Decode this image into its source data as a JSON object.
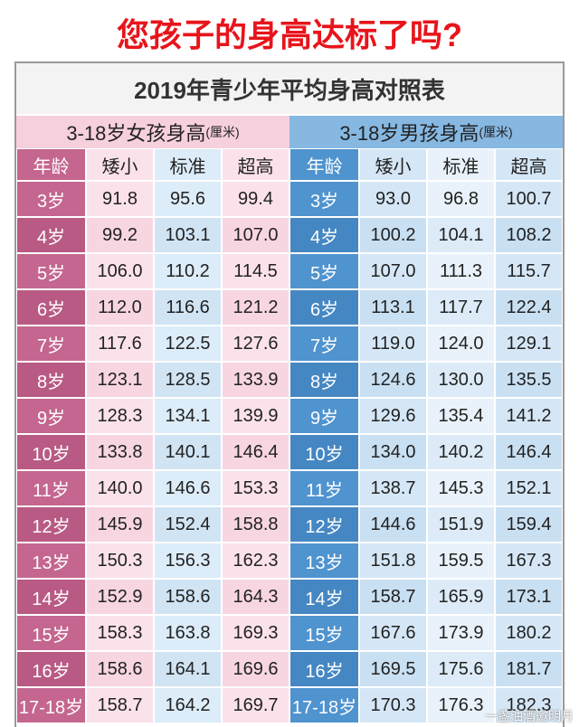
{
  "title": "您孩子的身高达标了吗?",
  "table": {
    "title": "2019年青少年平均身高对照表",
    "sections": [
      {
        "heading": "3-18岁女孩身高",
        "unit": "(厘米)",
        "columns": [
          "年龄",
          "矮小",
          "标准",
          "超高"
        ],
        "rows": [
          [
            "3岁",
            "91.8",
            "95.6",
            "99.4"
          ],
          [
            "4岁",
            "99.2",
            "103.1",
            "107.0"
          ],
          [
            "5岁",
            "106.0",
            "110.2",
            "114.5"
          ],
          [
            "6岁",
            "112.0",
            "116.6",
            "121.2"
          ],
          [
            "7岁",
            "117.6",
            "122.5",
            "127.6"
          ],
          [
            "8岁",
            "123.1",
            "128.5",
            "133.9"
          ],
          [
            "9岁",
            "128.3",
            "134.1",
            "139.9"
          ],
          [
            "10岁",
            "133.8",
            "140.1",
            "146.4"
          ],
          [
            "11岁",
            "140.0",
            "146.6",
            "153.3"
          ],
          [
            "12岁",
            "145.9",
            "152.4",
            "158.8"
          ],
          [
            "13岁",
            "150.3",
            "156.3",
            "162.3"
          ],
          [
            "14岁",
            "152.9",
            "158.6",
            "164.3"
          ],
          [
            "15岁",
            "158.3",
            "163.8",
            "169.3"
          ],
          [
            "16岁",
            "158.6",
            "164.1",
            "169.6"
          ],
          [
            "17-18岁",
            "158.7",
            "164.2",
            "169.7"
          ]
        ]
      },
      {
        "heading": "3-18岁男孩身高",
        "unit": "(厘米)",
        "columns": [
          "年龄",
          "矮小",
          "标准",
          "超高"
        ],
        "rows": [
          [
            "3岁",
            "93.0",
            "96.8",
            "100.7"
          ],
          [
            "4岁",
            "100.2",
            "104.1",
            "108.2"
          ],
          [
            "5岁",
            "107.0",
            "111.3",
            "115.7"
          ],
          [
            "6岁",
            "113.1",
            "117.7",
            "122.4"
          ],
          [
            "7岁",
            "119.0",
            "124.0",
            "129.1"
          ],
          [
            "8岁",
            "124.6",
            "130.0",
            "135.5"
          ],
          [
            "9岁",
            "129.6",
            "135.4",
            "141.2"
          ],
          [
            "10岁",
            "134.0",
            "140.2",
            "146.4"
          ],
          [
            "11岁",
            "138.7",
            "145.3",
            "152.1"
          ],
          [
            "12岁",
            "144.6",
            "151.9",
            "159.4"
          ],
          [
            "13岁",
            "151.8",
            "159.5",
            "167.3"
          ],
          [
            "14岁",
            "158.7",
            "165.9",
            "173.1"
          ],
          [
            "15岁",
            "167.6",
            "173.9",
            "180.2"
          ],
          [
            "16岁",
            "169.5",
            "175.6",
            "181.7"
          ],
          [
            "17-18岁",
            "170.3",
            "176.3",
            "182.3"
          ]
        ]
      }
    ]
  },
  "watermark": "一盏油酒邀明月"
}
